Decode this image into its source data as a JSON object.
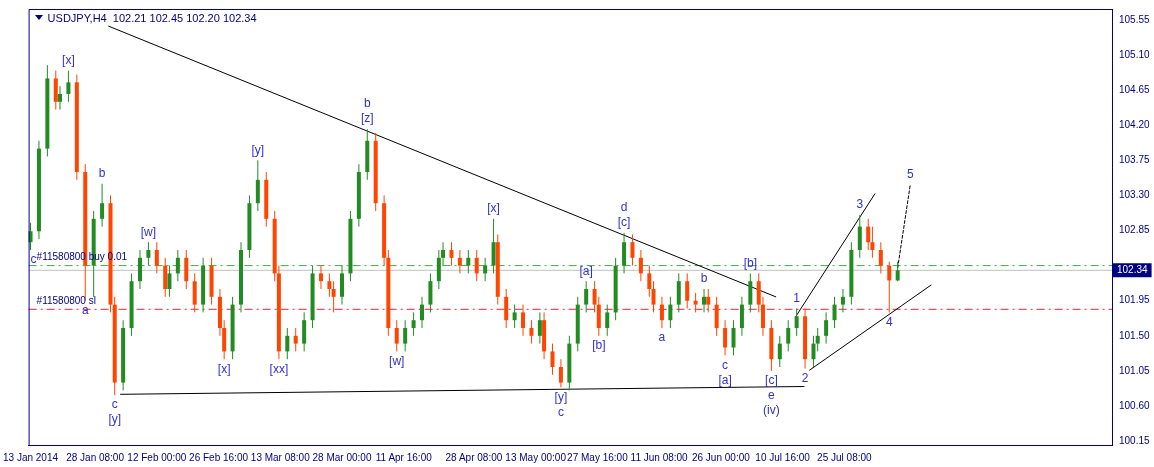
{
  "chart_data": {
    "type": "candlestick",
    "title": "USDJPY,H4  102.21 102.45 102.20 102.34",
    "marker": "none",
    "x": [
      "2014-01-13",
      "2014-01-15",
      "2014-01-17",
      "2014-01-19",
      "2014-01-20",
      "2014-01-22",
      "2014-01-24",
      "2014-01-26",
      "2014-01-28",
      "2014-01-30",
      "2014-02-01",
      "2014-02-02",
      "2014-02-04",
      "2014-02-06",
      "2014-02-08",
      "2014-02-10",
      "2014-02-12",
      "2014-02-14",
      "2014-02-15",
      "2014-02-17",
      "2014-02-19",
      "2014-02-21",
      "2014-02-23",
      "2014-02-25",
      "2014-02-27",
      "2014-02-28",
      "2014-03-02",
      "2014-03-04",
      "2014-03-06",
      "2014-03-08",
      "2014-03-10",
      "2014-03-12",
      "2014-03-13",
      "2014-03-15",
      "2014-03-17",
      "2014-03-19",
      "2014-03-21",
      "2014-03-23",
      "2014-03-25",
      "2014-03-26",
      "2014-03-28",
      "2014-03-30",
      "2014-04-01",
      "2014-04-03",
      "2014-04-05",
      "2014-04-07",
      "2014-04-08",
      "2014-04-10",
      "2014-04-12",
      "2014-04-14",
      "2014-04-16",
      "2014-04-18",
      "2014-04-20",
      "2014-04-21",
      "2014-04-23",
      "2014-04-25",
      "2014-04-27",
      "2014-04-29",
      "2014-05-01",
      "2014-05-03",
      "2014-05-04",
      "2014-05-06",
      "2014-05-08",
      "2014-05-10",
      "2014-05-12",
      "2014-05-14",
      "2014-05-15",
      "2014-05-17",
      "2014-05-19",
      "2014-05-21",
      "2014-05-23",
      "2014-05-25",
      "2014-05-27",
      "2014-05-28",
      "2014-05-30",
      "2014-06-01",
      "2014-06-03",
      "2014-06-05",
      "2014-06-07",
      "2014-06-09",
      "2014-06-10",
      "2014-06-12",
      "2014-06-14",
      "2014-06-16",
      "2014-06-18",
      "2014-06-20",
      "2014-06-22",
      "2014-06-23",
      "2014-06-25",
      "2014-06-27",
      "2014-06-29",
      "2014-07-01",
      "2014-07-03",
      "2014-07-05",
      "2014-07-06",
      "2014-07-08",
      "2014-07-10",
      "2014-07-12",
      "2014-07-14",
      "2014-07-16",
      "2014-07-18",
      "2014-07-19",
      "2014-07-21",
      "2014-07-23",
      "2014-07-25",
      "2014-07-27",
      "2014-07-29",
      "2014-07-31",
      "2014-08-01",
      "2014-08-03",
      "2014-08-05",
      "2014-08-07"
    ],
    "ohlc": [
      [
        102.7,
        102.95,
        102.6,
        102.84
      ],
      [
        102.84,
        104.0,
        102.74,
        103.9
      ],
      [
        103.9,
        104.97,
        103.8,
        104.8
      ],
      [
        104.8,
        104.9,
        104.4,
        104.5
      ],
      [
        104.5,
        104.7,
        104.4,
        104.6
      ],
      [
        104.6,
        104.9,
        104.5,
        104.75
      ],
      [
        104.75,
        104.85,
        103.5,
        103.6
      ],
      [
        103.6,
        103.7,
        101.95,
        102.4
      ],
      [
        102.4,
        103.1,
        102.0,
        103.0
      ],
      [
        103.0,
        103.45,
        102.9,
        103.2
      ],
      [
        103.2,
        103.3,
        101.8,
        101.9
      ],
      [
        101.9,
        102.0,
        100.74,
        100.9
      ],
      [
        100.9,
        101.7,
        100.8,
        101.6
      ],
      [
        101.6,
        102.3,
        101.5,
        102.2
      ],
      [
        102.2,
        102.6,
        102.1,
        102.5
      ],
      [
        102.5,
        102.7,
        102.4,
        102.6
      ],
      [
        102.6,
        102.7,
        102.3,
        102.4
      ],
      [
        102.4,
        102.5,
        102.0,
        102.1
      ],
      [
        102.1,
        102.4,
        102.0,
        102.3
      ],
      [
        102.3,
        102.6,
        102.2,
        102.5
      ],
      [
        102.5,
        102.6,
        102.1,
        102.2
      ],
      [
        102.2,
        102.3,
        101.8,
        101.9
      ],
      [
        101.9,
        102.5,
        101.8,
        102.4
      ],
      [
        102.4,
        102.5,
        101.9,
        102.0
      ],
      [
        102.0,
        102.1,
        101.5,
        101.6
      ],
      [
        101.6,
        101.7,
        101.2,
        101.3
      ],
      [
        101.3,
        102.0,
        101.2,
        101.9
      ],
      [
        101.9,
        102.7,
        101.8,
        102.6
      ],
      [
        102.6,
        103.3,
        102.5,
        103.2
      ],
      [
        103.2,
        103.75,
        103.1,
        103.5
      ],
      [
        103.5,
        103.6,
        102.9,
        103.0
      ],
      [
        103.0,
        103.1,
        102.2,
        102.3
      ],
      [
        102.3,
        102.4,
        101.2,
        101.3
      ],
      [
        101.3,
        101.6,
        101.2,
        101.5
      ],
      [
        101.5,
        101.6,
        101.3,
        101.4
      ],
      [
        101.4,
        101.8,
        101.3,
        101.7
      ],
      [
        101.7,
        102.4,
        101.6,
        102.3
      ],
      [
        102.3,
        102.4,
        102.1,
        102.2
      ],
      [
        102.2,
        102.3,
        102.0,
        102.1
      ],
      [
        102.1,
        102.2,
        101.8,
        102.0
      ],
      [
        102.0,
        102.4,
        101.9,
        102.3
      ],
      [
        102.3,
        103.1,
        102.2,
        103.0
      ],
      [
        103.0,
        103.7,
        102.9,
        103.6
      ],
      [
        103.6,
        104.15,
        103.5,
        104.0
      ],
      [
        104.0,
        104.1,
        103.1,
        103.2
      ],
      [
        103.2,
        103.3,
        102.4,
        102.5
      ],
      [
        102.5,
        102.6,
        101.5,
        101.6
      ],
      [
        101.6,
        101.7,
        101.3,
        101.4
      ],
      [
        101.4,
        101.7,
        101.3,
        101.6
      ],
      [
        101.6,
        101.8,
        101.5,
        101.7
      ],
      [
        101.7,
        102.0,
        101.6,
        101.9
      ],
      [
        101.9,
        102.3,
        101.8,
        102.2
      ],
      [
        102.2,
        102.6,
        102.1,
        102.5
      ],
      [
        102.5,
        102.7,
        102.4,
        102.6
      ],
      [
        102.6,
        102.7,
        102.4,
        102.5
      ],
      [
        102.5,
        102.6,
        102.3,
        102.4
      ],
      [
        102.4,
        102.6,
        102.3,
        102.5
      ],
      [
        102.5,
        102.6,
        102.2,
        102.3
      ],
      [
        102.3,
        102.5,
        102.2,
        102.4
      ],
      [
        102.4,
        103.0,
        102.3,
        102.7
      ],
      [
        102.7,
        102.8,
        101.9,
        102.0
      ],
      [
        102.0,
        102.1,
        101.6,
        101.7
      ],
      [
        101.7,
        101.9,
        101.6,
        101.8
      ],
      [
        101.8,
        101.9,
        101.5,
        101.6
      ],
      [
        101.6,
        101.7,
        101.4,
        101.5
      ],
      [
        101.5,
        101.8,
        101.4,
        101.7
      ],
      [
        101.7,
        101.8,
        101.2,
        101.3
      ],
      [
        101.3,
        101.4,
        101.0,
        101.1
      ],
      [
        101.1,
        101.2,
        100.84,
        100.9
      ],
      [
        100.9,
        101.5,
        100.8,
        101.4
      ],
      [
        101.4,
        102.0,
        101.3,
        101.9
      ],
      [
        101.9,
        102.2,
        101.8,
        102.1
      ],
      [
        102.1,
        102.2,
        101.8,
        101.9
      ],
      [
        101.9,
        102.0,
        101.5,
        101.6
      ],
      [
        101.6,
        101.9,
        101.5,
        101.8
      ],
      [
        101.8,
        102.5,
        101.7,
        102.4
      ],
      [
        102.4,
        102.82,
        102.3,
        102.7
      ],
      [
        102.7,
        102.8,
        102.4,
        102.5
      ],
      [
        102.5,
        102.6,
        102.2,
        102.3
      ],
      [
        102.3,
        102.4,
        102.0,
        102.1
      ],
      [
        102.1,
        102.2,
        101.8,
        101.9
      ],
      [
        101.9,
        102.0,
        101.6,
        101.7
      ],
      [
        101.7,
        102.0,
        101.6,
        101.9
      ],
      [
        101.9,
        102.3,
        101.8,
        102.2
      ],
      [
        102.2,
        102.3,
        101.85,
        101.95
      ],
      [
        101.95,
        102.05,
        101.8,
        101.9
      ],
      [
        101.9,
        102.1,
        101.8,
        102.0
      ],
      [
        102.0,
        102.1,
        101.8,
        101.9
      ],
      [
        101.9,
        102.0,
        101.5,
        101.6
      ],
      [
        101.6,
        101.7,
        101.25,
        101.35
      ],
      [
        101.35,
        101.7,
        101.25,
        101.6
      ],
      [
        101.6,
        102.0,
        101.5,
        101.9
      ],
      [
        101.9,
        102.3,
        101.8,
        102.2
      ],
      [
        102.2,
        102.3,
        101.8,
        101.9
      ],
      [
        101.9,
        102.0,
        101.5,
        101.6
      ],
      [
        101.6,
        101.7,
        101.05,
        101.2
      ],
      [
        101.2,
        101.5,
        101.1,
        101.4
      ],
      [
        101.4,
        101.7,
        101.3,
        101.6
      ],
      [
        101.6,
        101.85,
        101.5,
        101.75
      ],
      [
        101.75,
        101.85,
        101.08,
        101.2
      ],
      [
        101.2,
        101.5,
        101.1,
        101.4
      ],
      [
        101.4,
        101.6,
        101.3,
        101.5
      ],
      [
        101.5,
        101.8,
        101.4,
        101.7
      ],
      [
        101.7,
        102.0,
        101.6,
        101.9
      ],
      [
        101.9,
        102.1,
        101.8,
        102.0
      ],
      [
        102.0,
        102.7,
        101.9,
        102.6
      ],
      [
        102.6,
        103.05,
        102.5,
        102.9
      ],
      [
        102.9,
        103.0,
        102.6,
        102.7
      ],
      [
        102.7,
        102.9,
        102.5,
        102.6
      ],
      [
        102.6,
        102.7,
        102.3,
        102.4
      ],
      [
        102.4,
        102.45,
        101.8,
        102.21
      ],
      [
        102.21,
        102.45,
        102.2,
        102.34
      ]
    ],
    "colors": [
      "#228b22",
      "#228b22",
      "#228b22",
      "#ff4500",
      "#228b22",
      "#228b22",
      "#ff4500",
      "#ff4500",
      "#228b22",
      "#228b22",
      "#ff4500",
      "#ff4500",
      "#228b22",
      "#228b22",
      "#228b22",
      "#228b22",
      "#ff4500",
      "#ff4500",
      "#228b22",
      "#228b22",
      "#ff4500",
      "#ff4500",
      "#228b22",
      "#ff4500",
      "#ff4500",
      "#ff4500",
      "#228b22",
      "#228b22",
      "#228b22",
      "#228b22",
      "#ff4500",
      "#ff4500",
      "#ff4500",
      "#228b22",
      "#ff4500",
      "#228b22",
      "#228b22",
      "#ff4500",
      "#ff4500",
      "#ff4500",
      "#228b22",
      "#228b22",
      "#228b22",
      "#228b22",
      "#ff4500",
      "#ff4500",
      "#ff4500",
      "#ff4500",
      "#228b22",
      "#228b22",
      "#228b22",
      "#228b22",
      "#228b22",
      "#228b22",
      "#ff4500",
      "#ff4500",
      "#228b22",
      "#ff4500",
      "#228b22",
      "#228b22",
      "#ff4500",
      "#ff4500",
      "#228b22",
      "#ff4500",
      "#ff4500",
      "#228b22",
      "#ff4500",
      "#ff4500",
      "#ff4500",
      "#228b22",
      "#228b22",
      "#228b22",
      "#ff4500",
      "#ff4500",
      "#228b22",
      "#228b22",
      "#228b22",
      "#ff4500",
      "#ff4500",
      "#ff4500",
      "#ff4500",
      "#ff4500",
      "#228b22",
      "#228b22",
      "#ff4500",
      "#ff4500",
      "#228b22",
      "#ff4500",
      "#ff4500",
      "#ff4500",
      "#228b22",
      "#228b22",
      "#228b22",
      "#ff4500",
      "#ff4500",
      "#ff4500",
      "#228b22",
      "#228b22",
      "#228b22",
      "#ff4500",
      "#228b22",
      "#228b22",
      "#228b22",
      "#228b22",
      "#228b22",
      "#228b22",
      "#228b22",
      "#ff4500",
      "#ff4500",
      "#ff4500",
      "#ff4500",
      "#228b22"
    ],
    "series": [
      {
        "type": "line",
        "color": "#000000",
        "x": [
          "2014-01-31T13:00",
          "2014-07-09T01:00"
        ],
        "values": [
          105.47,
          102.0
        ]
      },
      {
        "type": "line",
        "color": "#000000",
        "x": [
          "2014-02-03T08:00",
          "2014-07-15T18:00"
        ],
        "values": [
          100.75,
          100.85
        ]
      },
      {
        "type": "line",
        "color": "#000000",
        "x": [
          "2014-07-13T17:00",
          "2014-08-01T14:00"
        ],
        "values": [
          101.74,
          103.32
        ]
      },
      {
        "type": "line",
        "color": "#000000",
        "x": [
          "2014-07-17T02:00",
          "2014-08-14T22:00"
        ],
        "values": [
          101.06,
          102.15
        ]
      },
      {
        "type": "line",
        "color": "#000000",
        "line_style": "dashed",
        "x": [
          "2014-08-07",
          "2014-08-10"
        ],
        "values": [
          102.37,
          103.44
        ]
      }
    ],
    "xlim": [
      "2014-01-12T13:00",
      "2014-09-26T22:00"
    ],
    "xticks": [
      {
        "value": "2014-01-13T00:00",
        "label": "13 Jan 2014"
      },
      {
        "value": "2014-01-28T08:00",
        "label": "28 Jan 08:00"
      },
      {
        "value": "2014-02-12T00:00",
        "label": "12 Feb 00:00"
      },
      {
        "value": "2014-02-26T16:00",
        "label": "26 Feb 16:00"
      },
      {
        "value": "2014-03-13T08:00",
        "label": "13 Mar 08:00"
      },
      {
        "value": "2014-03-28T00:00",
        "label": "28 Mar 00:00"
      },
      {
        "value": "2014-04-11T16:00",
        "label": "11 Apr 16:00"
      },
      {
        "value": "2014-04-28T08:00",
        "label": "28 Apr 08:00"
      },
      {
        "value": "2014-05-13T00:00",
        "label": "13 May 00:00"
      },
      {
        "value": "2014-05-27T16:00",
        "label": "27 May 16:00"
      },
      {
        "value": "2014-06-11T08:00",
        "label": "11 Jun 08:00"
      },
      {
        "value": "2014-06-26T00:00",
        "label": "26 Jun 00:00"
      },
      {
        "value": "2014-07-10T16:00",
        "label": "10 Jul 16:00"
      },
      {
        "value": "2014-07-25T08:00",
        "label": "25 Jul 08:00"
      }
    ],
    "ylim": [
      100.1,
      105.69
    ],
    "yticks": [
      {
        "value": 100.15,
        "label": "100.15"
      },
      {
        "value": 100.6,
        "label": "100.60"
      },
      {
        "value": 101.05,
        "label": "101.05"
      },
      {
        "value": 101.5,
        "label": "101.50"
      },
      {
        "value": 101.95,
        "label": "101.95"
      },
      {
        "value": 102.85,
        "label": "102.85"
      },
      {
        "value": 103.3,
        "label": "103.30"
      },
      {
        "value": 103.75,
        "label": "103.75"
      },
      {
        "value": 104.2,
        "label": "104.20"
      },
      {
        "value": 104.65,
        "label": "104.65"
      },
      {
        "value": 105.1,
        "label": "105.10"
      },
      {
        "value": 105.55,
        "label": "105.55"
      }
    ],
    "ref_lines": [
      {
        "axis": "y",
        "value": 102.4,
        "label": "#11580800 buy 0.01",
        "color": "#3cb043",
        "line_style": "dashed"
      },
      {
        "axis": "y",
        "value": 101.84,
        "label": "#11580800 sl",
        "color": "#e8203a",
        "line_style": "dashed"
      },
      {
        "axis": "y",
        "value": 102.34,
        "label": "102.34",
        "color": "#c0c0c0",
        "line_style": "solid"
      }
    ],
    "annotations": [
      {
        "text": "c",
        "x": "2014-01-13",
        "y": 102.6
      },
      {
        "text": "[x]",
        "x": "2014-01-22",
        "y": 104.9
      },
      {
        "text": "a",
        "x": "2014-01-26",
        "y": 101.95
      },
      {
        "text": "b",
        "x": "2014-01-30",
        "y": 103.45
      },
      {
        "text": "c",
        "x": "2014-02-02",
        "y": 100.74
      },
      {
        "text": "[y]",
        "x": "2014-02-02",
        "y": 100.74
      },
      {
        "text": "[w]",
        "x": "2014-02-10",
        "y": 102.7
      },
      {
        "text": "[x]",
        "x": "2014-02-28",
        "y": 101.2
      },
      {
        "text": "[y]",
        "x": "2014-03-08",
        "y": 103.75
      },
      {
        "text": "[xx]",
        "x": "2014-03-13",
        "y": 101.2
      },
      {
        "text": "[z]",
        "x": "2014-04-03",
        "y": 104.15
      },
      {
        "text": "b",
        "x": "2014-04-03",
        "y": 104.15
      },
      {
        "text": "[w]",
        "x": "2014-04-10",
        "y": 101.3
      },
      {
        "text": "[x]",
        "x": "2014-05-03",
        "y": 103.0
      },
      {
        "text": "[y]",
        "x": "2014-05-19",
        "y": 100.84
      },
      {
        "text": "c",
        "x": "2014-05-19",
        "y": 100.84
      },
      {
        "text": "[a]",
        "x": "2014-05-25",
        "y": 102.2
      },
      {
        "text": "[b]",
        "x": "2014-05-28",
        "y": 101.5
      },
      {
        "text": "[c]",
        "x": "2014-06-03",
        "y": 102.82
      },
      {
        "text": "d",
        "x": "2014-06-03",
        "y": 102.82
      },
      {
        "text": "a",
        "x": "2014-06-12",
        "y": 101.6
      },
      {
        "text": "b",
        "x": "2014-06-22",
        "y": 102.1
      },
      {
        "text": "c",
        "x": "2014-06-27",
        "y": 101.25
      },
      {
        "text": "[a]",
        "x": "2014-06-27",
        "y": 101.25
      },
      {
        "text": "[b]",
        "x": "2014-07-03",
        "y": 102.3
      },
      {
        "text": "[c]",
        "x": "2014-07-08",
        "y": 101.05
      },
      {
        "text": "e",
        "x": "2014-07-08",
        "y": 101.05
      },
      {
        "text": "(iv)",
        "x": "2014-07-08",
        "y": 101.05
      },
      {
        "text": "1",
        "x": "2014-07-14",
        "y": 101.85
      },
      {
        "text": "2",
        "x": "2014-07-16",
        "y": 101.08
      },
      {
        "text": "3",
        "x": "2014-07-29",
        "y": 103.05
      },
      {
        "text": "4",
        "x": "2014-08-05",
        "y": 101.8
      },
      {
        "text": "5",
        "x": "2014-08-10",
        "y": 103.44
      }
    ]
  }
}
